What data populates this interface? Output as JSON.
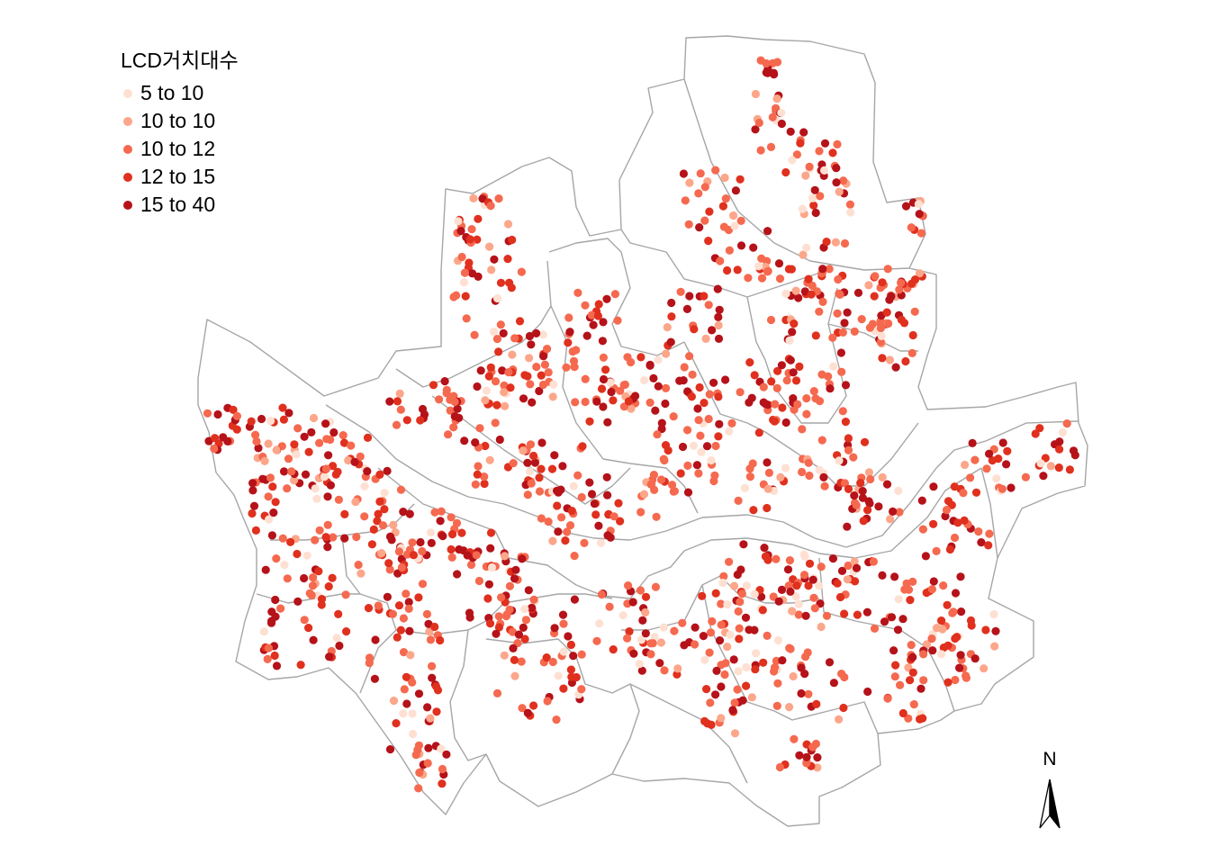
{
  "legend": {
    "title": "LCD거치대수",
    "items": [
      {
        "label": "5 to 10",
        "color": "#FEE0D2"
      },
      {
        "label": "10 to 10",
        "color": "#FCA68A"
      },
      {
        "label": "10 to 12",
        "color": "#F5694F"
      },
      {
        "label": "12 to 15",
        "color": "#E0301E"
      },
      {
        "label": "15 to 40",
        "color": "#B51219"
      }
    ]
  },
  "north_arrow": {
    "label": "N"
  },
  "colors": {
    "boundary": "#A6A6A6",
    "background": "#FFFFFF"
  }
}
